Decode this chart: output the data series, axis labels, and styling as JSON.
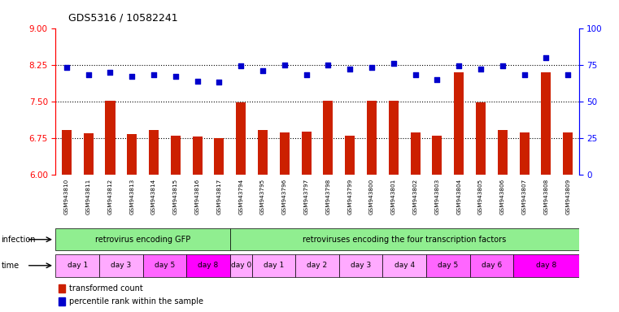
{
  "title": "GDS5316 / 10582241",
  "samples": [
    "GSM943810",
    "GSM943811",
    "GSM943812",
    "GSM943813",
    "GSM943814",
    "GSM943815",
    "GSM943816",
    "GSM943817",
    "GSM943794",
    "GSM943795",
    "GSM943796",
    "GSM943797",
    "GSM943798",
    "GSM943799",
    "GSM943800",
    "GSM943801",
    "GSM943802",
    "GSM943803",
    "GSM943804",
    "GSM943805",
    "GSM943806",
    "GSM943807",
    "GSM943808",
    "GSM943809"
  ],
  "red_values": [
    6.92,
    6.85,
    7.52,
    6.84,
    6.92,
    6.8,
    6.78,
    6.75,
    7.48,
    6.92,
    6.87,
    6.88,
    7.52,
    6.8,
    7.52,
    7.52,
    6.87,
    6.8,
    8.1,
    7.48,
    6.92,
    6.87,
    8.1,
    6.87
  ],
  "blue_values": [
    73,
    68,
    70,
    67,
    68,
    67,
    64,
    63,
    74,
    71,
    75,
    68,
    75,
    72,
    73,
    76,
    68,
    65,
    74,
    72,
    74,
    68,
    80,
    68
  ],
  "ylim_left": [
    6,
    9
  ],
  "ylim_right": [
    0,
    100
  ],
  "yticks_left": [
    6,
    6.75,
    7.5,
    8.25,
    9
  ],
  "yticks_right": [
    0,
    25,
    50,
    75,
    100
  ],
  "infection_groups": [
    {
      "label": "retrovirus encoding GFP",
      "start": 0,
      "end": 8,
      "color": "#90EE90"
    },
    {
      "label": "retroviruses encoding the four transcription factors",
      "start": 8,
      "end": 24,
      "color": "#90EE90"
    }
  ],
  "time_groups": [
    {
      "label": "day 1",
      "start": 0,
      "end": 2,
      "color": "#FFAAFF"
    },
    {
      "label": "day 3",
      "start": 2,
      "end": 4,
      "color": "#FFAAFF"
    },
    {
      "label": "day 5",
      "start": 4,
      "end": 6,
      "color": "#FF66FF"
    },
    {
      "label": "day 8",
      "start": 6,
      "end": 8,
      "color": "#FF00FF"
    },
    {
      "label": "day 0",
      "start": 8,
      "end": 9,
      "color": "#FFAAFF"
    },
    {
      "label": "day 1",
      "start": 9,
      "end": 11,
      "color": "#FFAAFF"
    },
    {
      "label": "day 2",
      "start": 11,
      "end": 13,
      "color": "#FFAAFF"
    },
    {
      "label": "day 3",
      "start": 13,
      "end": 15,
      "color": "#FFAAFF"
    },
    {
      "label": "day 4",
      "start": 15,
      "end": 17,
      "color": "#FFAAFF"
    },
    {
      "label": "day 5",
      "start": 17,
      "end": 19,
      "color": "#FF66FF"
    },
    {
      "label": "day 6",
      "start": 19,
      "end": 21,
      "color": "#FF66FF"
    },
    {
      "label": "day 8",
      "start": 21,
      "end": 24,
      "color": "#FF00FF"
    }
  ],
  "bar_color": "#CC2000",
  "dot_color": "#0000CC",
  "background_color": "#FFFFFF",
  "legend_red_label": "transformed count",
  "legend_blue_label": "percentile rank within the sample",
  "infection_label": "infection",
  "time_label": "time",
  "xlabel_bg": "#D3D3D3"
}
